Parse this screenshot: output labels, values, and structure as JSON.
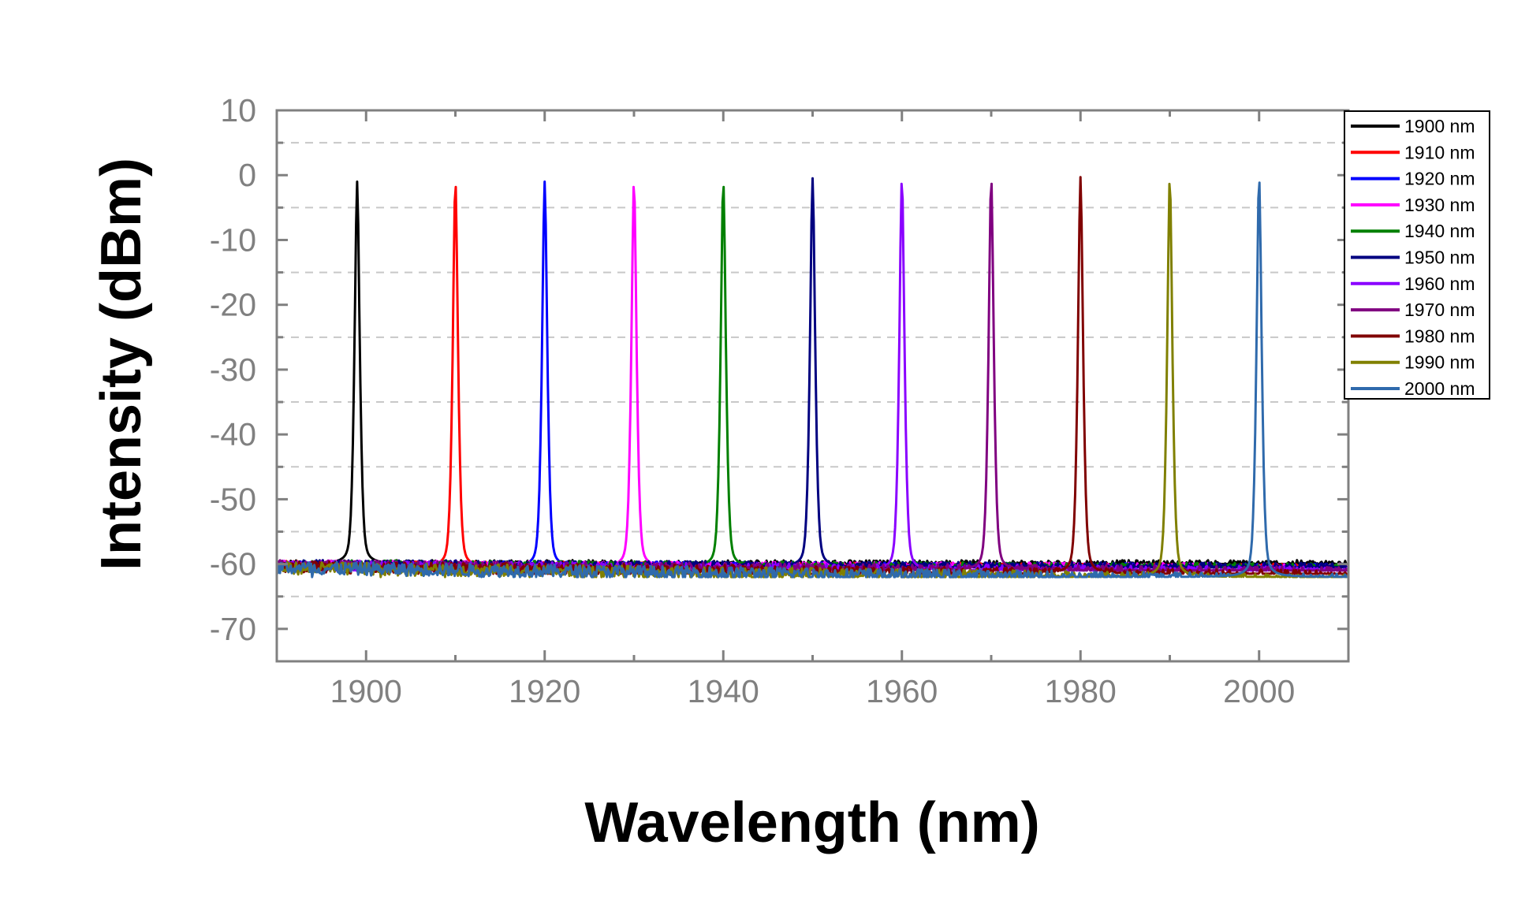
{
  "chart_data": {
    "type": "line",
    "title": "",
    "xlabel": "Wavelength (nm)",
    "ylabel": "Intensity (dBm)",
    "xlim": [
      1890,
      2010
    ],
    "ylim": [
      -75,
      10
    ],
    "xticks": [
      1900,
      1920,
      1940,
      1960,
      1980,
      2000
    ],
    "yticks": [
      10,
      0,
      -10,
      -20,
      -30,
      -40,
      -50,
      -60,
      -70
    ],
    "gridlines_y": [
      5,
      -5,
      -15,
      -25,
      -35,
      -45,
      -55,
      -65
    ],
    "grid": "dashed horizontal",
    "legend_position": "top-right, outside plot",
    "axis_color": "#808080",
    "series": [
      {
        "name": "1900 nm",
        "color": "#000000",
        "peak_x": 1899,
        "peak_y": -1.0,
        "floor_y": -60.0
      },
      {
        "name": "1910 nm",
        "color": "#ff0000",
        "peak_x": 1910,
        "peak_y": -1.0,
        "floor_y": -60.5
      },
      {
        "name": "1920 nm",
        "color": "#0000ff",
        "peak_x": 1920,
        "peak_y": -1.0,
        "floor_y": -60.5
      },
      {
        "name": "1930 nm",
        "color": "#ff00ff",
        "peak_x": 1930,
        "peak_y": -1.0,
        "floor_y": -60.5
      },
      {
        "name": "1940 nm",
        "color": "#008000",
        "peak_x": 1940,
        "peak_y": -1.0,
        "floor_y": -60.5
      },
      {
        "name": "1950 nm",
        "color": "#000080",
        "peak_x": 1950,
        "peak_y": -0.5,
        "floor_y": -60.5
      },
      {
        "name": "1960 nm",
        "color": "#8a00ff",
        "peak_x": 1960,
        "peak_y": -0.5,
        "floor_y": -61.0
      },
      {
        "name": "1970 nm",
        "color": "#800080",
        "peak_x": 1970,
        "peak_y": -0.5,
        "floor_y": -61.0
      },
      {
        "name": "1980 nm",
        "color": "#800000",
        "peak_x": 1980,
        "peak_y": -0.3,
        "floor_y": -61.5
      },
      {
        "name": "1990 nm",
        "color": "#808000",
        "peak_x": 1990,
        "peak_y": -0.5,
        "floor_y": -62.0
      },
      {
        "name": "2000 nm",
        "color": "#2f6aac",
        "peak_x": 2000,
        "peak_y": -0.3,
        "floor_y": -62.0
      }
    ]
  }
}
